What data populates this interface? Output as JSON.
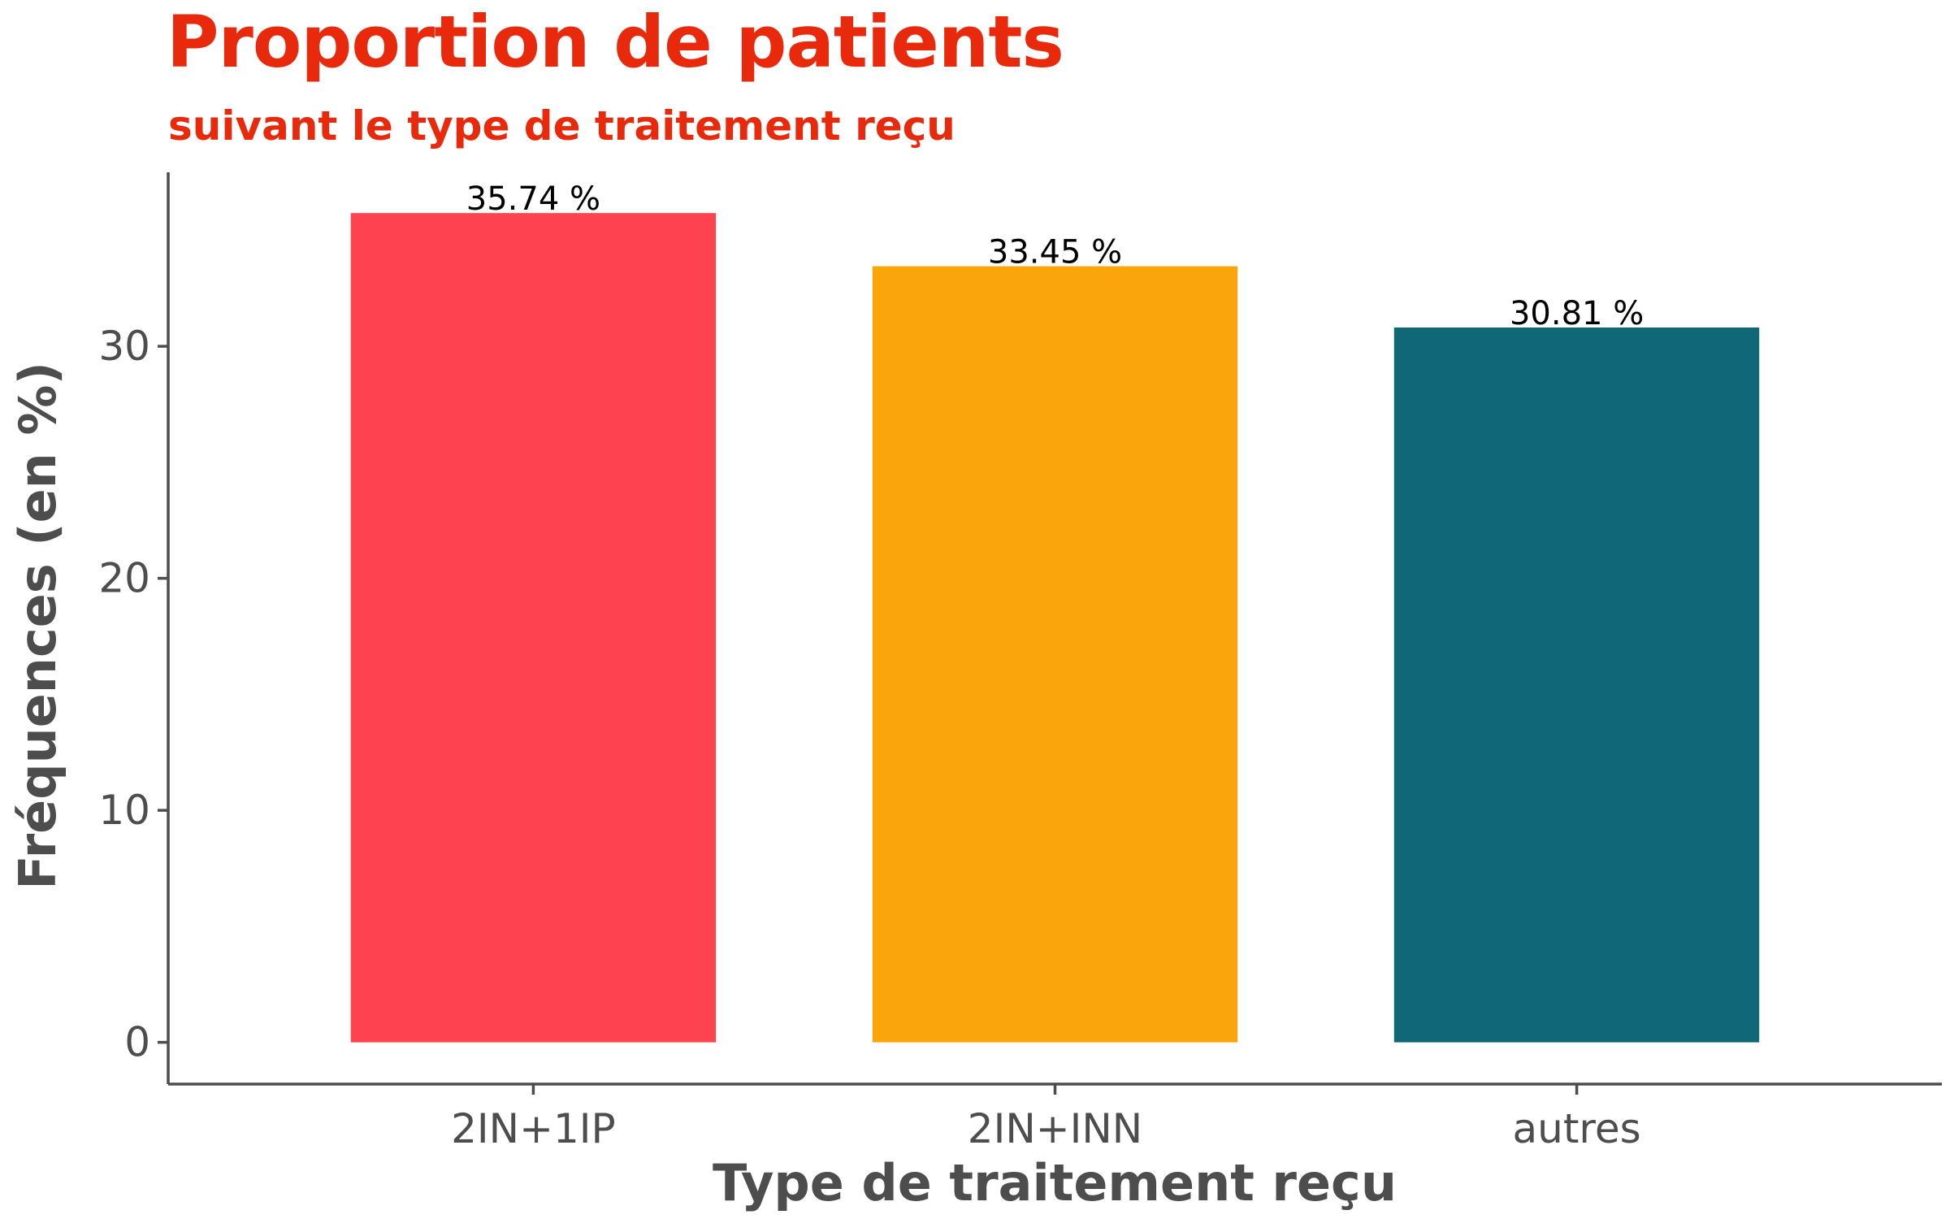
{
  "chart_data": {
    "type": "bar",
    "title": "Proportion de patients",
    "subtitle": "suivant le type de traitement reçu",
    "xlabel": "Type de traitement reçu",
    "ylabel": "Fréquences (en %)",
    "categories": [
      "2IN+1IP",
      "2IN+INN",
      "autres"
    ],
    "values": [
      35.74,
      33.45,
      30.81
    ],
    "value_labels": [
      "35.74 %",
      "33.45 %",
      "30.81 %"
    ],
    "bar_colors": [
      "#FF424F",
      "#FBA50D",
      "#106776"
    ],
    "y_ticks": [
      0,
      10,
      20,
      30
    ],
    "ylim": [
      -1.8,
      37.5
    ],
    "grid": false,
    "legend": "none"
  },
  "colors": {
    "title": "#E9290B",
    "axis": "#4D4D4D",
    "tick_label": "#4D4D4D",
    "axis_title": "#4D4D4D",
    "value_label": "#000000"
  }
}
